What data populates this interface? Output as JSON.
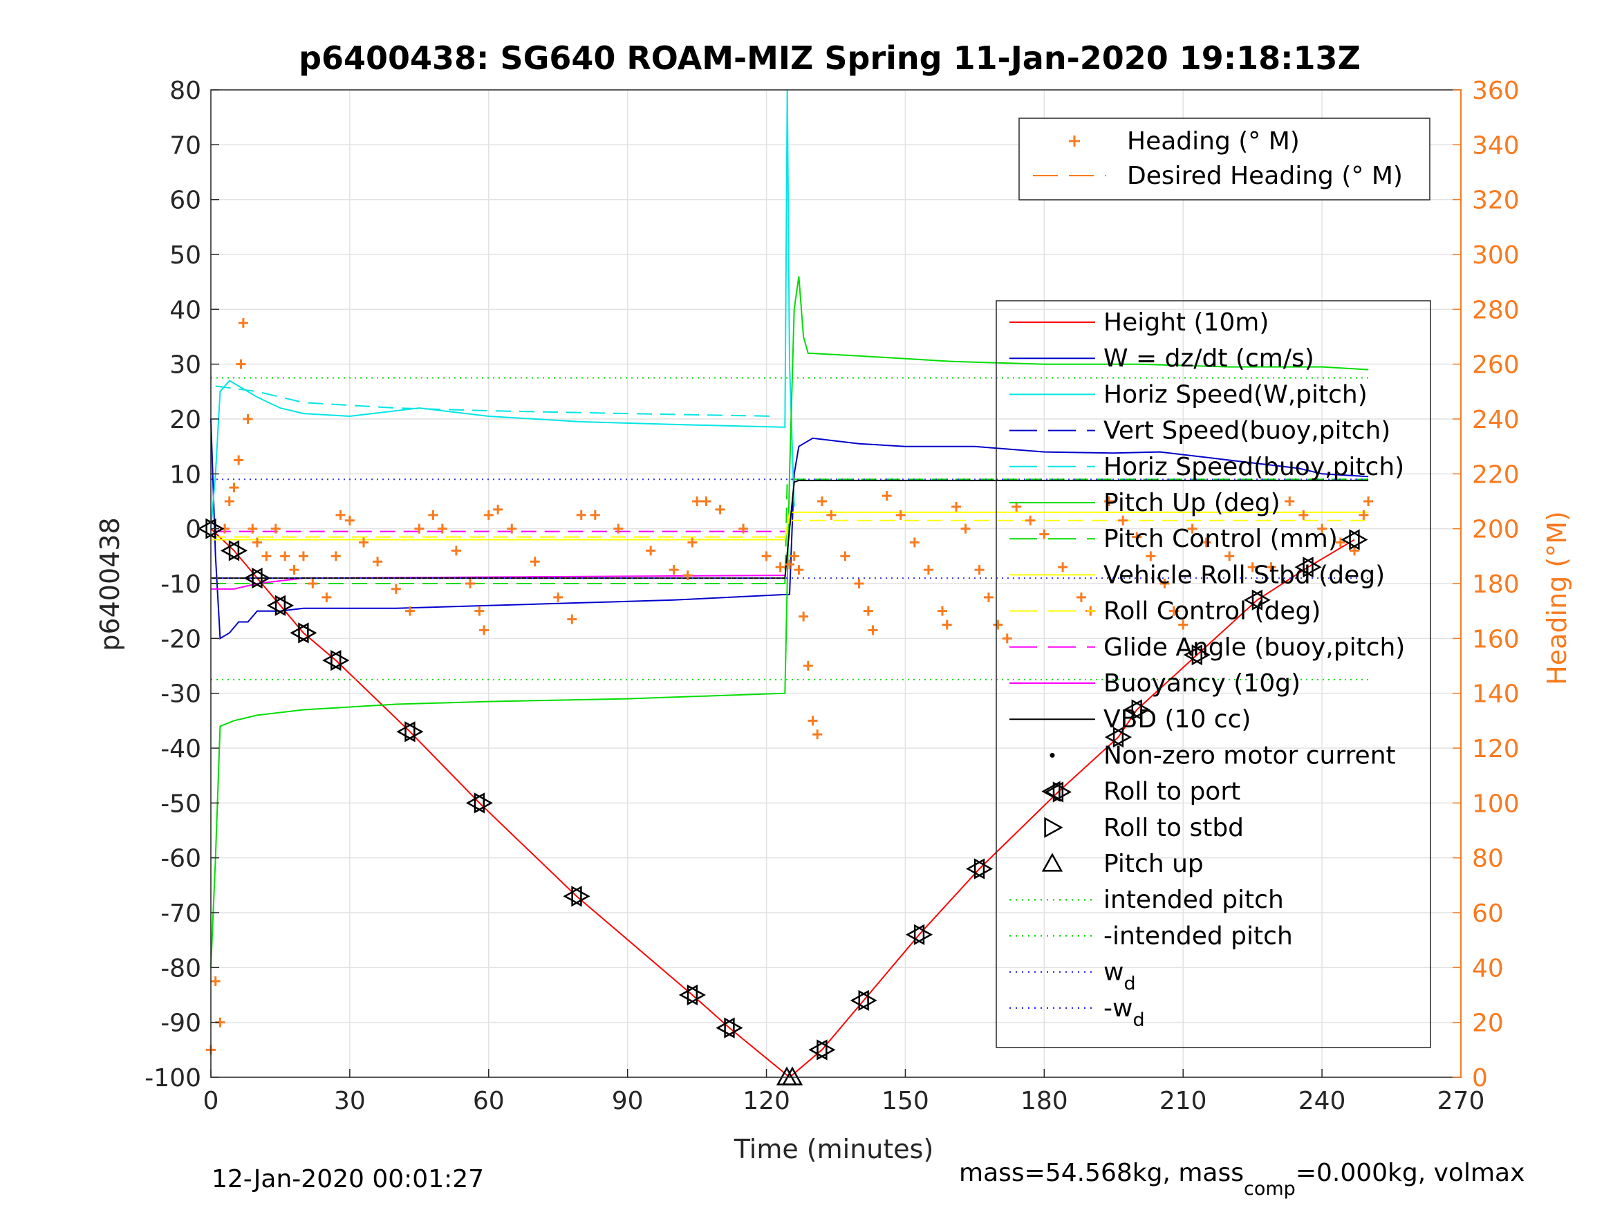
{
  "chart_data": {
    "type": "line",
    "title": "p6400438: SG640 ROAM-MIZ Spring 11-Jan-2020 19:18:13Z",
    "xlabel": "Time (minutes)",
    "ylabel": "p6400438",
    "y2label": "Heading (°M)",
    "xlim": [
      0,
      270
    ],
    "ylim": [
      -100,
      80
    ],
    "y2lim": [
      0,
      360
    ],
    "xticks": [
      "0",
      "30",
      "60",
      "90",
      "120",
      "150",
      "180",
      "210",
      "240",
      "270"
    ],
    "yticks": [
      "-100",
      "-90",
      "-80",
      "-70",
      "-60",
      "-50",
      "-40",
      "-30",
      "-20",
      "-10",
      "0",
      "10",
      "20",
      "30",
      "40",
      "50",
      "60",
      "70",
      "80"
    ],
    "y2ticks": [
      "0",
      "20",
      "40",
      "60",
      "80",
      "100",
      "120",
      "140",
      "160",
      "180",
      "200",
      "220",
      "240",
      "260",
      "280",
      "300",
      "320",
      "340",
      "360"
    ],
    "grid": true,
    "footer_left": "12-Jan-2020 00:01:27",
    "footer_right": {
      "pre": "mass=54.568kg, mass",
      "sub": "comp",
      "post": "=0.000kg, volmax"
    },
    "colors": {
      "height": "#ff0000",
      "w": "#0000cc",
      "horiz_speed": "#00e5e5",
      "pitch": "#00dd00",
      "roll": "#ffff00",
      "glide": "#ff00ff",
      "vbd": "#000000",
      "heading": "#f97a1e",
      "wd": "#3333ff"
    },
    "legend_heading": [
      {
        "label": "Heading (° M)",
        "marker": "plus",
        "color": "#f97a1e"
      },
      {
        "label": "Desired Heading (° M)",
        "marker": "dash",
        "color": "#f97a1e"
      }
    ],
    "legend_main": [
      {
        "label": "Height (10m)",
        "style": "solid",
        "color": "#ff0000"
      },
      {
        "label": "W = dz/dt (cm/s)",
        "style": "solid",
        "color": "#0000cc"
      },
      {
        "label": "Horiz Speed(W,pitch)",
        "style": "solid",
        "color": "#00e5e5"
      },
      {
        "label": "Vert Speed(buoy,pitch)",
        "style": "dash",
        "color": "#0000cc"
      },
      {
        "label": "Horiz Speed(buoy,pitch)",
        "style": "dash",
        "color": "#00e5e5"
      },
      {
        "label": "Pitch Up (deg)",
        "style": "solid",
        "color": "#00dd00"
      },
      {
        "label": "Pitch Control (mm)",
        "style": "dash",
        "color": "#00dd00"
      },
      {
        "label": "Vehicle Roll Stbd (deg)",
        "style": "solid",
        "color": "#ffff00"
      },
      {
        "label": "Roll Control (deg)",
        "style": "dash",
        "color": "#ffff00"
      },
      {
        "label": "Glide Angle (buoy,pitch)",
        "style": "dash",
        "color": "#ff00ff"
      },
      {
        "label": "Buoyancy (10g)",
        "style": "solid",
        "color": "#ff00ff"
      },
      {
        "label": "VBD (10 cc)",
        "style": "solid",
        "color": "#000000"
      },
      {
        "label": "Non-zero motor current",
        "style": "dot",
        "color": "#000000"
      },
      {
        "label": "Roll to port",
        "style": "tri-left",
        "color": "#000000"
      },
      {
        "label": "Roll to stbd",
        "style": "tri-right",
        "color": "#000000"
      },
      {
        "label": "Pitch up",
        "style": "tri-up",
        "color": "#000000"
      },
      {
        "label": "intended pitch",
        "style": "dotted",
        "color": "#00dd00"
      },
      {
        "label": "-intended pitch",
        "style": "dotted",
        "color": "#00dd00"
      },
      {
        "label": "w",
        "sub": "d",
        "style": "dotted",
        "color": "#3333ff"
      },
      {
        "label": "-w",
        "sub": "d",
        "style": "dotted",
        "color": "#3333ff"
      }
    ],
    "series": [
      {
        "name": "Height (10m)",
        "points": [
          [
            0,
            0
          ],
          [
            5,
            -4
          ],
          [
            10,
            -9
          ],
          [
            15,
            -14
          ],
          [
            20,
            -19
          ],
          [
            27,
            -24
          ],
          [
            43,
            -37
          ],
          [
            58,
            -50
          ],
          [
            79,
            -67
          ],
          [
            104,
            -85
          ],
          [
            112,
            -91
          ],
          [
            125,
            -100
          ],
          [
            132,
            -95
          ],
          [
            141,
            -86
          ],
          [
            153,
            -74
          ],
          [
            166,
            -62
          ],
          [
            183,
            -48
          ],
          [
            196,
            -38
          ],
          [
            200,
            -33
          ],
          [
            213,
            -23
          ],
          [
            226,
            -13
          ],
          [
            237,
            -7
          ],
          [
            247,
            -2
          ]
        ]
      },
      {
        "name": "W = dz/dt (cm/s)",
        "points": [
          [
            0,
            20
          ],
          [
            1,
            -5
          ],
          [
            2,
            -20
          ],
          [
            4,
            -19
          ],
          [
            6,
            -17
          ],
          [
            8,
            -17
          ],
          [
            10,
            -15
          ],
          [
            15,
            -15
          ],
          [
            20,
            -14.5
          ],
          [
            40,
            -14.5
          ],
          [
            60,
            -14
          ],
          [
            80,
            -13.5
          ],
          [
            100,
            -13
          ],
          [
            124,
            -12
          ],
          [
            125,
            -12
          ],
          [
            126,
            10
          ],
          [
            127,
            15
          ],
          [
            130,
            16.5
          ],
          [
            140,
            15.5
          ],
          [
            150,
            15
          ],
          [
            165,
            15
          ],
          [
            180,
            14
          ],
          [
            195,
            13.8
          ],
          [
            205,
            14
          ],
          [
            215,
            13
          ],
          [
            225,
            12
          ],
          [
            235,
            11
          ],
          [
            240,
            10
          ],
          [
            250,
            9.5
          ]
        ]
      },
      {
        "name": "Horiz Speed(W,pitch)",
        "points": [
          [
            0,
            0
          ],
          [
            1,
            10
          ],
          [
            2,
            25
          ],
          [
            4,
            27
          ],
          [
            6,
            26
          ],
          [
            10,
            24
          ],
          [
            15,
            22
          ],
          [
            20,
            21
          ],
          [
            30,
            20.5
          ],
          [
            45,
            22
          ],
          [
            60,
            20.5
          ],
          [
            80,
            19.5
          ],
          [
            100,
            19
          ],
          [
            124,
            18.5
          ],
          [
            124.5,
            80
          ],
          [
            125,
            30
          ],
          [
            126,
            4
          ]
        ]
      },
      {
        "name": "Horiz Speed(buoy,pitch)",
        "points": [
          [
            1,
            26
          ],
          [
            10,
            25
          ],
          [
            20,
            23
          ],
          [
            40,
            22
          ],
          [
            60,
            21.5
          ],
          [
            90,
            21
          ],
          [
            122,
            20.5
          ]
        ]
      },
      {
        "name": "Pitch Up (deg)",
        "points": [
          [
            0,
            -80
          ],
          [
            1,
            -60
          ],
          [
            2,
            -36
          ],
          [
            5,
            -35
          ],
          [
            10,
            -34
          ],
          [
            20,
            -33
          ],
          [
            40,
            -32
          ],
          [
            60,
            -31.5
          ],
          [
            90,
            -31
          ],
          [
            124,
            -30
          ],
          [
            125,
            10
          ],
          [
            126,
            40
          ],
          [
            127,
            46
          ],
          [
            128,
            35
          ],
          [
            129,
            32
          ],
          [
            140,
            31.5
          ],
          [
            160,
            30.5
          ],
          [
            180,
            30
          ],
          [
            200,
            30
          ],
          [
            220,
            29.5
          ],
          [
            240,
            29.5
          ],
          [
            250,
            29
          ]
        ]
      },
      {
        "name": "Pitch Control (mm)",
        "points": [
          [
            0,
            -10
          ],
          [
            124,
            -10
          ],
          [
            124.5,
            9
          ],
          [
            250,
            9
          ]
        ]
      },
      {
        "name": "Vehicle Roll Stbd (deg)",
        "points": [
          [
            0,
            -2
          ],
          [
            124,
            -2
          ],
          [
            125,
            3
          ],
          [
            250,
            3
          ]
        ]
      },
      {
        "name": "Roll Control (deg)",
        "points": [
          [
            0,
            -1.5
          ],
          [
            124,
            -1.5
          ],
          [
            125,
            1.5
          ],
          [
            250,
            1.5
          ]
        ]
      },
      {
        "name": "Glide Angle (buoy,pitch)",
        "points": [
          [
            1,
            -0.5
          ],
          [
            124,
            -0.5
          ]
        ]
      },
      {
        "name": "Buoyancy (10g)",
        "points": [
          [
            0,
            -11
          ],
          [
            5,
            -11
          ],
          [
            10,
            -10
          ],
          [
            20,
            -9
          ],
          [
            124,
            -8.5
          ]
        ]
      },
      {
        "name": "VBD (10 cc)",
        "points": [
          [
            0,
            -9
          ],
          [
            124,
            -9
          ],
          [
            125,
            0
          ],
          [
            126,
            8.5
          ],
          [
            127,
            8.8
          ],
          [
            250,
            8.8
          ]
        ]
      },
      {
        "name": "intended pitch",
        "values": [
          27.5
        ]
      },
      {
        "name": "-intended pitch",
        "values": [
          -27.5
        ]
      },
      {
        "name": "wd",
        "values": [
          9
        ]
      },
      {
        "name": "-wd",
        "values": [
          -9
        ]
      }
    ],
    "heading_points": [
      [
        0,
        10
      ],
      [
        1,
        35
      ],
      [
        2,
        20
      ],
      [
        3,
        200
      ],
      [
        4,
        210
      ],
      [
        5,
        215
      ],
      [
        6,
        225
      ],
      [
        6.5,
        260
      ],
      [
        7,
        275
      ],
      [
        8,
        240
      ],
      [
        9,
        200
      ],
      [
        10,
        195
      ],
      [
        12,
        190
      ],
      [
        14,
        200
      ],
      [
        16,
        190
      ],
      [
        18,
        185
      ],
      [
        20,
        190
      ],
      [
        22,
        180
      ],
      [
        25,
        175
      ],
      [
        27,
        190
      ],
      [
        28,
        205
      ],
      [
        30,
        203
      ],
      [
        33,
        195
      ],
      [
        36,
        188
      ],
      [
        40,
        178
      ],
      [
        43,
        170
      ],
      [
        45,
        200
      ],
      [
        48,
        205
      ],
      [
        50,
        200
      ],
      [
        53,
        192
      ],
      [
        56,
        180
      ],
      [
        58,
        170
      ],
      [
        59,
        163
      ],
      [
        60,
        205
      ],
      [
        62,
        207
      ],
      [
        65,
        200
      ],
      [
        70,
        188
      ],
      [
        75,
        175
      ],
      [
        78,
        167
      ],
      [
        80,
        205
      ],
      [
        83,
        205
      ],
      [
        88,
        200
      ],
      [
        95,
        192
      ],
      [
        100,
        185
      ],
      [
        103,
        183
      ],
      [
        104,
        195
      ],
      [
        105,
        210
      ],
      [
        107,
        210
      ],
      [
        110,
        207
      ],
      [
        115,
        200
      ],
      [
        120,
        190
      ],
      [
        123,
        186
      ],
      [
        125,
        187
      ],
      [
        126,
        190
      ],
      [
        127,
        185
      ],
      [
        128,
        168
      ],
      [
        129,
        150
      ],
      [
        130,
        130
      ],
      [
        131,
        125
      ],
      [
        132,
        210
      ],
      [
        134,
        205
      ],
      [
        137,
        190
      ],
      [
        140,
        180
      ],
      [
        142,
        170
      ],
      [
        143,
        163
      ],
      [
        146,
        212
      ],
      [
        149,
        205
      ],
      [
        152,
        195
      ],
      [
        155,
        185
      ],
      [
        158,
        170
      ],
      [
        159,
        165
      ],
      [
        161,
        208
      ],
      [
        163,
        200
      ],
      [
        166,
        185
      ],
      [
        168,
        175
      ],
      [
        170,
        165
      ],
      [
        172,
        160
      ],
      [
        174,
        208
      ],
      [
        177,
        203
      ],
      [
        180,
        198
      ],
      [
        184,
        186
      ],
      [
        188,
        175
      ],
      [
        190,
        170
      ],
      [
        194,
        210
      ],
      [
        197,
        203
      ],
      [
        200,
        197
      ],
      [
        203,
        190
      ],
      [
        206,
        180
      ],
      [
        208,
        170
      ],
      [
        210,
        165
      ],
      [
        212,
        200
      ],
      [
        215,
        195
      ],
      [
        220,
        190
      ],
      [
        225,
        186
      ],
      [
        229,
        186
      ],
      [
        233,
        210
      ],
      [
        236,
        205
      ],
      [
        240,
        200
      ],
      [
        244,
        195
      ],
      [
        247,
        192
      ],
      [
        249,
        205
      ],
      [
        250,
        210
      ]
    ]
  }
}
